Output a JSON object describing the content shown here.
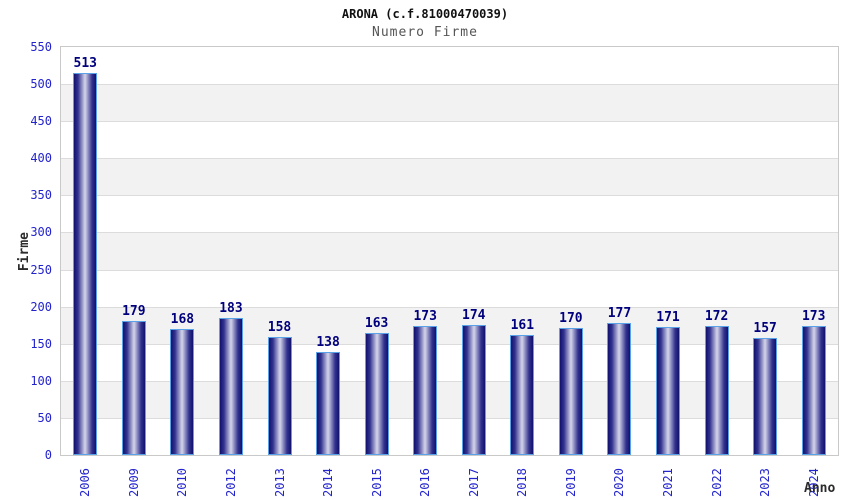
{
  "chart_data": {
    "type": "bar",
    "title": "ARONA (c.f.81000470039)",
    "subtitle": "Numero Firme",
    "xlabel": "Anno",
    "ylabel": "Firme",
    "categories": [
      "2006",
      "2009",
      "2010",
      "2012",
      "2013",
      "2014",
      "2015",
      "2016",
      "2017",
      "2018",
      "2019",
      "2020",
      "2021",
      "2022",
      "2023",
      "2024"
    ],
    "values": [
      513,
      179,
      168,
      183,
      158,
      138,
      163,
      173,
      174,
      161,
      170,
      177,
      171,
      172,
      157,
      173
    ],
    "ylim": [
      0,
      550
    ],
    "ytick_step": 50,
    "yticks": [
      0,
      50,
      100,
      150,
      200,
      250,
      300,
      350,
      400,
      450,
      500,
      550
    ],
    "grid": true,
    "legend_visible": false,
    "bar_labels_visible": true,
    "colors": {
      "title": "#111111",
      "subtitle": "#555555",
      "bar_edge": "#12126e",
      "bar_mid": "#32328f",
      "bar_center": "#cdcde6",
      "bar_outline": "#5aa2e8",
      "value_label": "#00007d",
      "tick_label": "#2424cd",
      "axis_title": "#2b2b2b",
      "band": "#f2f2f2",
      "gridline": "#dcdcdc",
      "plot_border": "#c9c9c9",
      "background": "#ffffff"
    }
  }
}
